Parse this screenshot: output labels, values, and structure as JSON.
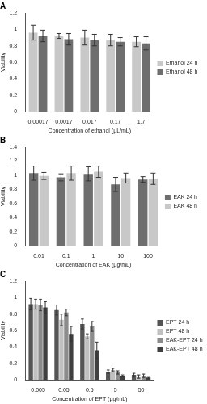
{
  "chart_data": [
    {
      "type": "bar",
      "title": "A",
      "x_label": "Concentration of ethanol (µL/mL)",
      "y_label": "Viability",
      "categories": [
        "0.00017",
        "0.0017",
        "0.017",
        "0.17",
        "1.7"
      ],
      "series": [
        {
          "name": "Ethanol 24 h",
          "color": "#c8c8c8",
          "values": [
            0.96,
            0.92,
            0.9,
            0.87,
            0.85
          ],
          "errors": [
            0.09,
            0.03,
            0.09,
            0.07,
            0.06
          ]
        },
        {
          "name": "Ethanol 48 h",
          "color": "#6e6e6e",
          "values": [
            0.92,
            0.88,
            0.87,
            0.85,
            0.83
          ],
          "errors": [
            0.07,
            0.07,
            0.07,
            0.05,
            0.08
          ]
        }
      ],
      "ylim": [
        0,
        1.2
      ],
      "yticks": [
        0,
        0.2,
        0.4,
        0.6,
        0.8,
        1,
        1.2
      ],
      "grid": false,
      "legend": "right"
    },
    {
      "type": "bar",
      "title": "B",
      "x_label": "Concentration of EAK (µg/mL)",
      "y_label": "Viability",
      "categories": [
        "0.01",
        "0.1",
        "1",
        "10",
        "100"
      ],
      "series": [
        {
          "name": "EAK 24 h",
          "color": "#6e6e6e",
          "values": [
            1.03,
            0.97,
            1.02,
            0.87,
            0.94
          ],
          "errors": [
            0.1,
            0.05,
            0.1,
            0.1,
            0.04
          ]
        },
        {
          "name": "EAK 48 h",
          "color": "#c8c8c8",
          "values": [
            0.99,
            1.03,
            1.05,
            0.96,
            0.95
          ],
          "errors": [
            0.05,
            0.1,
            0.08,
            0.07,
            0.08
          ]
        }
      ],
      "ylim": [
        0,
        1.4
      ],
      "yticks": [
        0,
        0.2,
        0.4,
        0.6,
        0.8,
        1,
        1.2,
        1.4
      ],
      "grid": false,
      "legend": "right"
    },
    {
      "type": "bar",
      "title": "C",
      "x_label": "Concentration of EPT (µg/mL)",
      "y_label": "Viability",
      "categories": [
        "0.005",
        "0.05",
        "0.5",
        "5",
        "50"
      ],
      "series": [
        {
          "name": "EPT 24 h",
          "color": "#555555",
          "values": [
            0.92,
            0.85,
            0.68,
            0.1,
            0.06
          ],
          "errors": [
            0.07,
            0.06,
            0.06,
            0.02,
            0.02
          ]
        },
        {
          "name": "EPT 48 h",
          "color": "#c0c0c0",
          "values": [
            0.92,
            0.73,
            0.53,
            0.12,
            0.04
          ],
          "errors": [
            0.06,
            0.07,
            0.03,
            0.02,
            0.02
          ]
        },
        {
          "name": "EAK-EPT 24 h",
          "color": "#8c8c8c",
          "values": [
            0.91,
            0.82,
            0.65,
            0.09,
            0.05
          ],
          "errors": [
            0.07,
            0.04,
            0.06,
            0.02,
            0.02
          ]
        },
        {
          "name": "EAK-EPT 48 h",
          "color": "#404040",
          "values": [
            0.88,
            0.56,
            0.36,
            0.05,
            0.03
          ],
          "errors": [
            0.07,
            0.09,
            0.1,
            0.01,
            0.01
          ]
        }
      ],
      "ylim": [
        0,
        1.2
      ],
      "yticks": [
        0,
        0.2,
        0.4,
        0.6,
        0.8,
        1,
        1.2
      ],
      "grid": false,
      "legend": "right"
    }
  ]
}
